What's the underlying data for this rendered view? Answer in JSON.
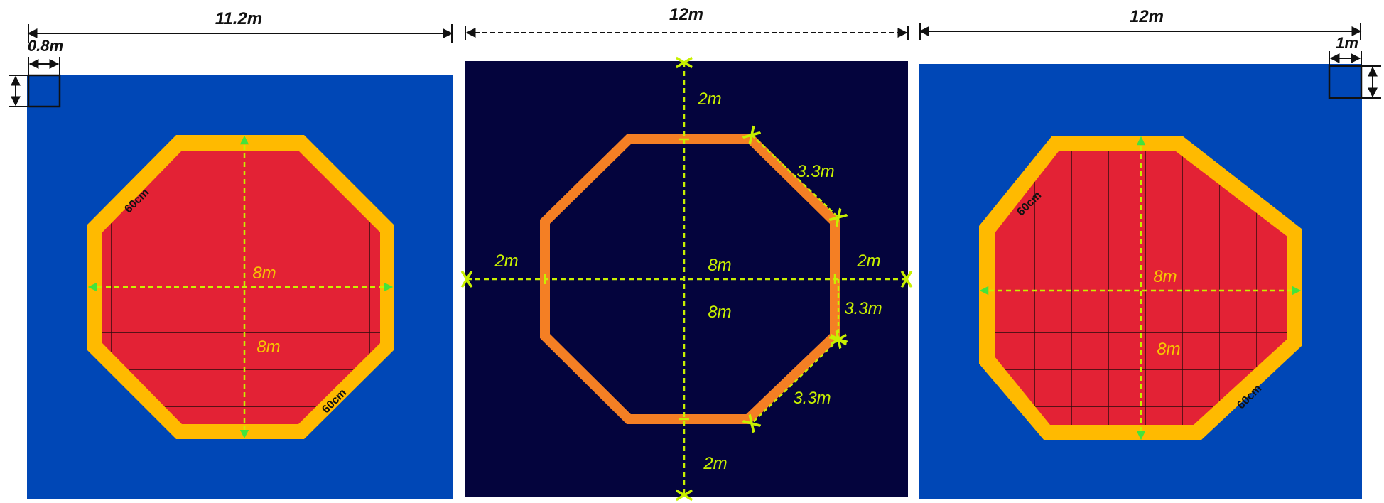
{
  "colors": {
    "blue_field": "#0047b6",
    "navy_field": "#04043d",
    "octagon_border_yellow": "#ffba00",
    "octagon_fill_red": "#e32235",
    "outline_orange": "#f47f24",
    "dimension_green": "#c8f000",
    "arrow_green": "#44e33c",
    "label_yellow": "#f7c600"
  },
  "left_panel": {
    "overall_width": "11.2m",
    "corner_box_width": "0.8m",
    "border_top_left": "60cm",
    "border_bottom_right": "60cm",
    "horizontal_span": "8m",
    "vertical_span": "8m"
  },
  "center_panel": {
    "overall_width": "12m",
    "top_margin": "2m",
    "bottom_margin": "2m",
    "left_margin": "2m",
    "right_margin": "2m",
    "diagonal_upper": "3.3m",
    "side_right": "3.3m",
    "diagonal_lower": "3.3m",
    "horizontal_span": "8m",
    "vertical_span": "8m"
  },
  "right_panel": {
    "overall_width": "12m",
    "corner_box_width": "1m",
    "border_top_left": "60cm",
    "border_bottom_right": "60cm",
    "horizontal_span": "8m",
    "vertical_span": "8m"
  }
}
